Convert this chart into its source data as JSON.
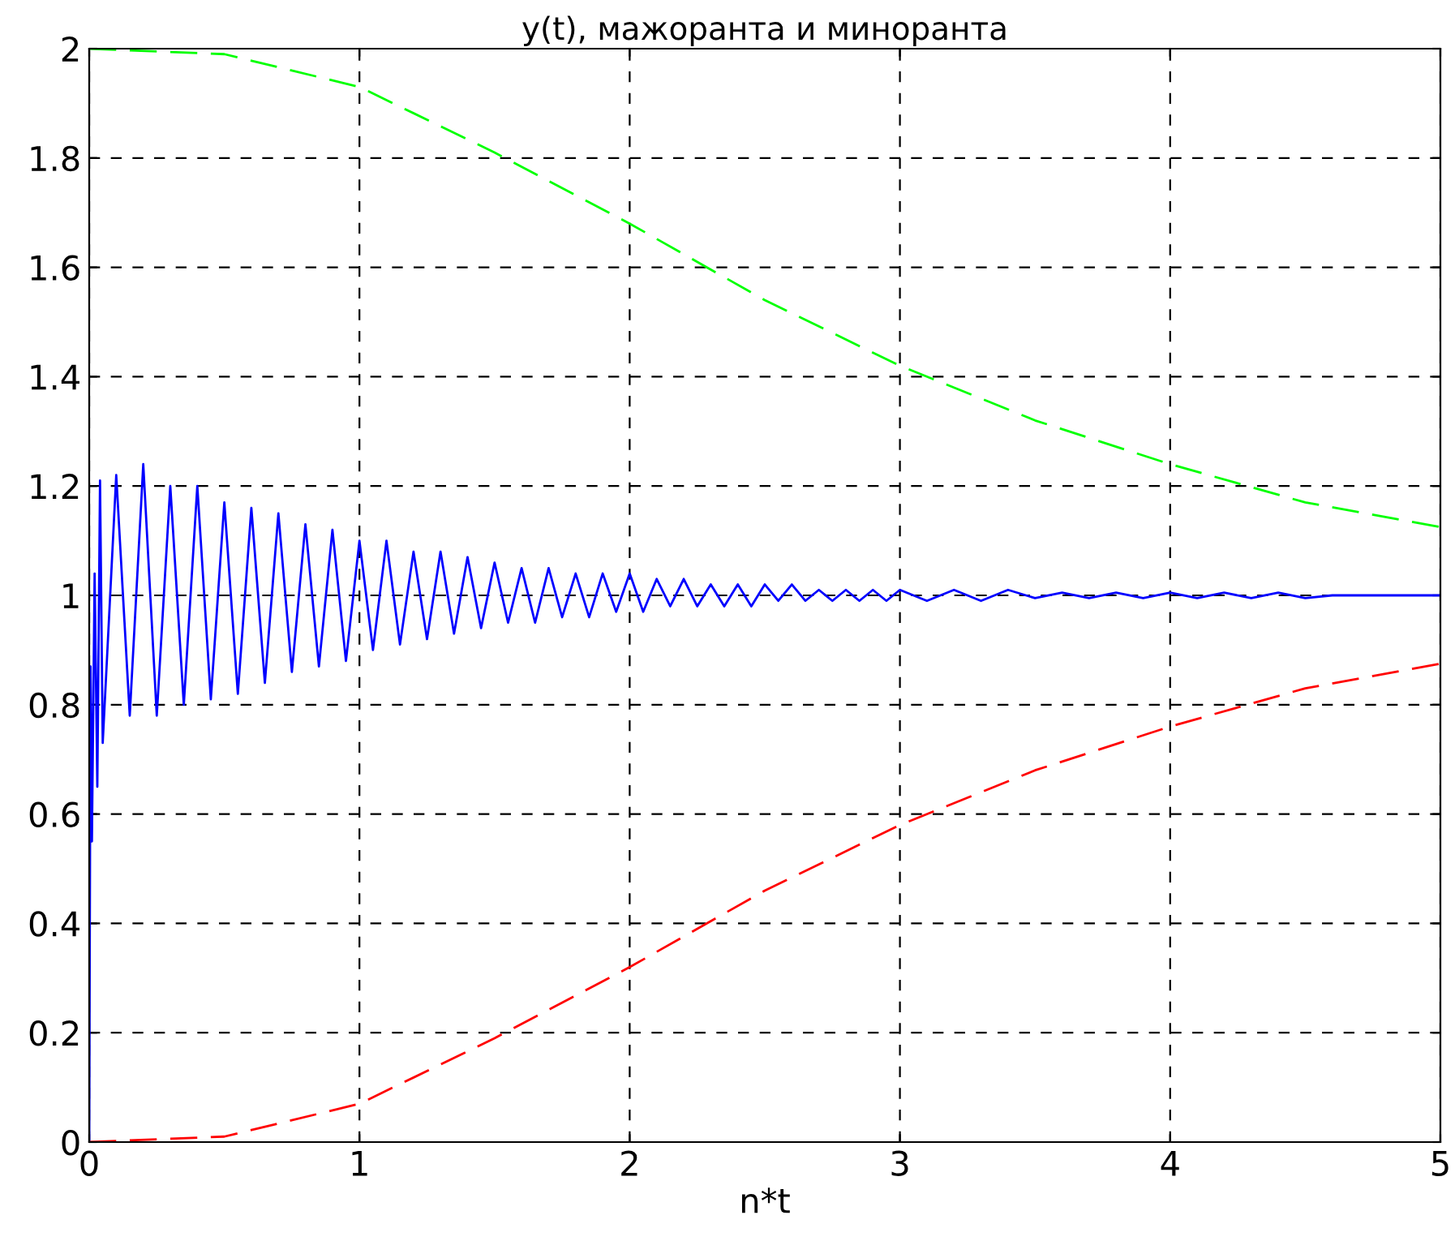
{
  "chart_data": {
    "type": "line",
    "title": "y(t), мажоранта и миноранта",
    "xlabel": "n*t",
    "xlim": [
      0,
      5
    ],
    "xticks": [
      0,
      1,
      2,
      3,
      4,
      5
    ],
    "ylim": [
      0,
      2
    ],
    "yticks": [
      0,
      0.2,
      0.4,
      0.6,
      0.8,
      1,
      1.2,
      1.4,
      1.6,
      1.8,
      2
    ],
    "grid": true,
    "tick_labels": true,
    "series": [
      {
        "color": "#0000ff",
        "line_style": "solid",
        "x": [
          0,
          0.005,
          0.01,
          0.02,
          0.03,
          0.04,
          0.05,
          0.1,
          0.15,
          0.2,
          0.25,
          0.3,
          0.35,
          0.4,
          0.45,
          0.5,
          0.55,
          0.6,
          0.65,
          0.7,
          0.75,
          0.8,
          0.85,
          0.9,
          0.95,
          1.0,
          1.05,
          1.1,
          1.15,
          1.2,
          1.25,
          1.3,
          1.35,
          1.4,
          1.45,
          1.5,
          1.55,
          1.6,
          1.65,
          1.7,
          1.75,
          1.8,
          1.85,
          1.9,
          1.95,
          2.0,
          2.05,
          2.1,
          2.15,
          2.2,
          2.25,
          2.3,
          2.35,
          2.4,
          2.45,
          2.5,
          2.55,
          2.6,
          2.65,
          2.7,
          2.75,
          2.8,
          2.85,
          2.9,
          2.95,
          3.0,
          3.1,
          3.2,
          3.3,
          3.4,
          3.5,
          3.6,
          3.7,
          3.8,
          3.9,
          4.0,
          4.1,
          4.2,
          4.3,
          4.4,
          4.5,
          4.6,
          5
        ],
        "values": [
          0,
          0.87,
          0.55,
          1.04,
          0.65,
          1.21,
          0.73,
          1.22,
          0.78,
          1.24,
          0.78,
          1.2,
          0.8,
          1.2,
          0.81,
          1.17,
          0.82,
          1.16,
          0.84,
          1.15,
          0.86,
          1.13,
          0.87,
          1.12,
          0.88,
          1.1,
          0.9,
          1.1,
          0.91,
          1.08,
          0.92,
          1.08,
          0.93,
          1.07,
          0.94,
          1.06,
          0.95,
          1.05,
          0.95,
          1.05,
          0.96,
          1.04,
          0.96,
          1.04,
          0.97,
          1.04,
          0.97,
          1.03,
          0.98,
          1.03,
          0.98,
          1.02,
          0.98,
          1.02,
          0.98,
          1.02,
          0.99,
          1.02,
          0.99,
          1.01,
          0.99,
          1.01,
          0.99,
          1.01,
          0.99,
          1.01,
          0.99,
          1.01,
          0.99,
          1.01,
          0.995,
          1.005,
          0.995,
          1.005,
          0.995,
          1.005,
          0.995,
          1.005,
          0.995,
          1.005,
          0.995,
          1,
          1
        ]
      },
      {
        "color": "#00ff00",
        "line_style": "dashed",
        "x": [
          0,
          0.5,
          1,
          1.5,
          2,
          2.5,
          3,
          3.5,
          4,
          4.5,
          5
        ],
        "values": [
          2,
          1.99,
          1.93,
          1.81,
          1.68,
          1.54,
          1.42,
          1.32,
          1.24,
          1.17,
          1.125
        ]
      },
      {
        "color": "#ff0000",
        "line_style": "dashed",
        "x": [
          0,
          0.5,
          1,
          1.5,
          2,
          2.5,
          3,
          3.5,
          4,
          4.5,
          5
        ],
        "values": [
          0,
          0.01,
          0.07,
          0.19,
          0.32,
          0.46,
          0.58,
          0.68,
          0.76,
          0.83,
          0.875
        ]
      }
    ]
  }
}
